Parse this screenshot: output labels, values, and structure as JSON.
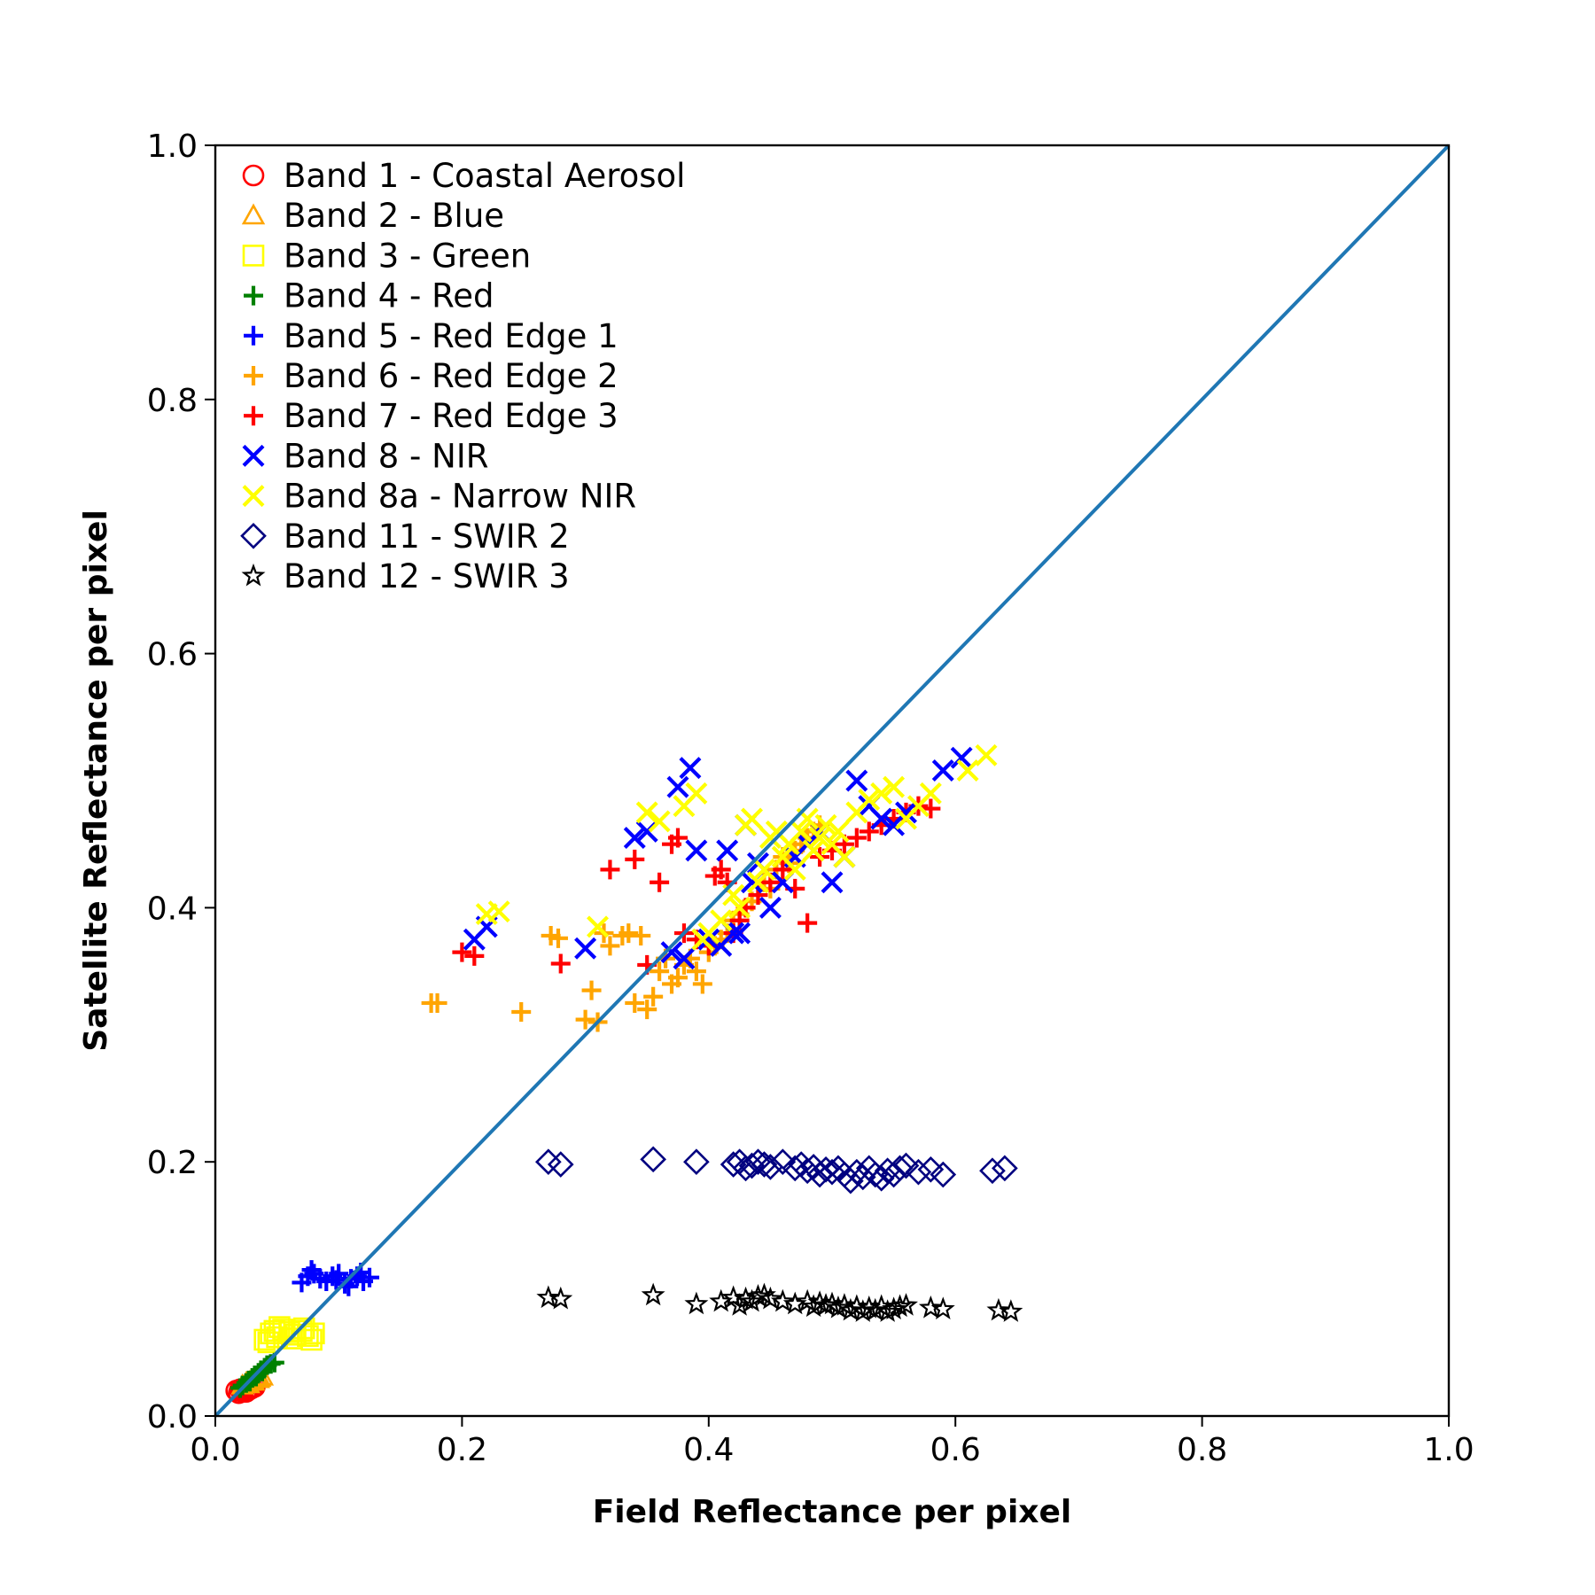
{
  "chart_data": {
    "type": "scatter",
    "title": "",
    "xlabel": "Field Reflectance per pixel",
    "ylabel": "Satellite Reflectance per pixel",
    "xlim": [
      0.0,
      1.0
    ],
    "ylim": [
      0.0,
      1.0
    ],
    "xticks": [
      "0.0",
      "0.2",
      "0.4",
      "0.6",
      "0.8",
      "1.0"
    ],
    "yticks": [
      "0.0",
      "0.2",
      "0.4",
      "0.6",
      "0.8",
      "1.0"
    ],
    "grid": false,
    "legend_position": "top-left",
    "reference_line": {
      "x": [
        0.0,
        1.0
      ],
      "y": [
        0.0,
        1.0
      ],
      "color": "#1f77b4"
    },
    "series": [
      {
        "name": "Band 1 - Coastal Aerosol",
        "marker": "circle",
        "color": "#ff0000",
        "x": [
          0.017,
          0.02,
          0.022,
          0.024,
          0.026,
          0.028,
          0.03,
          0.019,
          0.021,
          0.025,
          0.027,
          0.032,
          0.023,
          0.029
        ],
        "y": [
          0.02,
          0.021,
          0.019,
          0.022,
          0.02,
          0.021,
          0.022,
          0.018,
          0.02,
          0.019,
          0.021,
          0.023,
          0.02,
          0.022
        ]
      },
      {
        "name": "Band 2 - Blue",
        "marker": "triangle",
        "color": "#ffa500",
        "x": [
          0.022,
          0.025,
          0.028,
          0.03,
          0.033,
          0.035,
          0.038,
          0.027,
          0.031,
          0.036
        ],
        "y": [
          0.024,
          0.026,
          0.027,
          0.028,
          0.03,
          0.029,
          0.031,
          0.025,
          0.027,
          0.03
        ]
      },
      {
        "name": "Band 3 - Green",
        "marker": "square",
        "color": "#ffff00",
        "x": [
          0.04,
          0.045,
          0.05,
          0.055,
          0.06,
          0.065,
          0.07,
          0.075,
          0.08,
          0.043,
          0.052,
          0.062,
          0.072,
          0.078,
          0.048
        ],
        "y": [
          0.06,
          0.065,
          0.062,
          0.068,
          0.066,
          0.064,
          0.067,
          0.063,
          0.065,
          0.058,
          0.07,
          0.061,
          0.069,
          0.06,
          0.067
        ]
      },
      {
        "name": "Band 4 - Red",
        "marker": "plus",
        "color": "#008000",
        "x": [
          0.02,
          0.022,
          0.025,
          0.027,
          0.03,
          0.032,
          0.035,
          0.037,
          0.04,
          0.042,
          0.045,
          0.048,
          0.028,
          0.033,
          0.038
        ],
        "y": [
          0.022,
          0.024,
          0.026,
          0.028,
          0.03,
          0.032,
          0.034,
          0.036,
          0.038,
          0.04,
          0.041,
          0.042,
          0.027,
          0.031,
          0.035
        ]
      },
      {
        "name": "Band 5 - Red Edge 1",
        "marker": "plus",
        "color": "#0000ff",
        "x": [
          0.07,
          0.075,
          0.08,
          0.085,
          0.09,
          0.095,
          0.1,
          0.105,
          0.11,
          0.115,
          0.12,
          0.125,
          0.078,
          0.098,
          0.108,
          0.118
        ],
        "y": [
          0.105,
          0.11,
          0.112,
          0.108,
          0.106,
          0.11,
          0.112,
          0.104,
          0.108,
          0.11,
          0.106,
          0.109,
          0.115,
          0.107,
          0.102,
          0.113
        ]
      },
      {
        "name": "Band 6 - Red Edge 2",
        "marker": "plus",
        "color": "#ffa500",
        "x": [
          0.175,
          0.18,
          0.248,
          0.272,
          0.278,
          0.3,
          0.305,
          0.31,
          0.315,
          0.32,
          0.33,
          0.335,
          0.34,
          0.345,
          0.35,
          0.355,
          0.36,
          0.365,
          0.37,
          0.375,
          0.38,
          0.385,
          0.39,
          0.395,
          0.4,
          0.405,
          0.41,
          0.415,
          0.42,
          0.425,
          0.43,
          0.435,
          0.44,
          0.445,
          0.45,
          0.455,
          0.46,
          0.465,
          0.47,
          0.475,
          0.48,
          0.485,
          0.49
        ],
        "y": [
          0.325,
          0.325,
          0.318,
          0.378,
          0.376,
          0.312,
          0.335,
          0.31,
          0.38,
          0.37,
          0.378,
          0.38,
          0.325,
          0.378,
          0.32,
          0.33,
          0.35,
          0.36,
          0.34,
          0.345,
          0.355,
          0.36,
          0.35,
          0.34,
          0.365,
          0.37,
          0.375,
          0.38,
          0.39,
          0.395,
          0.4,
          0.405,
          0.41,
          0.42,
          0.415,
          0.43,
          0.44,
          0.435,
          0.445,
          0.45,
          0.455,
          0.46,
          0.465
        ]
      },
      {
        "name": "Band 7 - Red Edge 3",
        "marker": "plus",
        "color": "#ff0000",
        "x": [
          0.2,
          0.21,
          0.28,
          0.32,
          0.34,
          0.35,
          0.36,
          0.37,
          0.375,
          0.38,
          0.39,
          0.4,
          0.405,
          0.41,
          0.415,
          0.42,
          0.425,
          0.43,
          0.44,
          0.45,
          0.46,
          0.47,
          0.48,
          0.49,
          0.5,
          0.51,
          0.52,
          0.53,
          0.54,
          0.55,
          0.56,
          0.57,
          0.58
        ],
        "y": [
          0.365,
          0.362,
          0.356,
          0.43,
          0.438,
          0.355,
          0.42,
          0.45,
          0.455,
          0.38,
          0.375,
          0.37,
          0.425,
          0.43,
          0.42,
          0.38,
          0.39,
          0.4,
          0.41,
          0.42,
          0.43,
          0.415,
          0.388,
          0.44,
          0.445,
          0.45,
          0.455,
          0.46,
          0.465,
          0.47,
          0.475,
          0.48,
          0.478
        ]
      },
      {
        "name": "Band 8 - NIR",
        "marker": "x",
        "color": "#0000ff",
        "x": [
          0.21,
          0.22,
          0.3,
          0.34,
          0.35,
          0.37,
          0.375,
          0.38,
          0.385,
          0.39,
          0.4,
          0.41,
          0.415,
          0.42,
          0.425,
          0.43,
          0.435,
          0.44,
          0.45,
          0.46,
          0.47,
          0.48,
          0.49,
          0.5,
          0.51,
          0.52,
          0.53,
          0.54,
          0.55,
          0.56,
          0.59,
          0.605
        ],
        "y": [
          0.375,
          0.385,
          0.368,
          0.455,
          0.46,
          0.365,
          0.495,
          0.36,
          0.51,
          0.445,
          0.375,
          0.37,
          0.445,
          0.38,
          0.38,
          0.465,
          0.42,
          0.435,
          0.4,
          0.42,
          0.44,
          0.45,
          0.46,
          0.42,
          0.44,
          0.5,
          0.48,
          0.47,
          0.465,
          0.475,
          0.508,
          0.518
        ]
      },
      {
        "name": "Band 8a - Narrow NIR",
        "marker": "x",
        "color": "#ffff00",
        "x": [
          0.22,
          0.23,
          0.31,
          0.35,
          0.36,
          0.38,
          0.39,
          0.395,
          0.4,
          0.41,
          0.42,
          0.425,
          0.43,
          0.435,
          0.44,
          0.445,
          0.45,
          0.455,
          0.46,
          0.465,
          0.47,
          0.475,
          0.48,
          0.485,
          0.49,
          0.495,
          0.5,
          0.505,
          0.51,
          0.52,
          0.53,
          0.54,
          0.55,
          0.56,
          0.57,
          0.58,
          0.61,
          0.625
        ],
        "y": [
          0.395,
          0.397,
          0.385,
          0.475,
          0.468,
          0.48,
          0.49,
          0.375,
          0.38,
          0.39,
          0.41,
          0.4,
          0.465,
          0.47,
          0.42,
          0.43,
          0.455,
          0.46,
          0.44,
          0.45,
          0.43,
          0.46,
          0.47,
          0.445,
          0.455,
          0.465,
          0.45,
          0.46,
          0.44,
          0.475,
          0.485,
          0.49,
          0.495,
          0.47,
          0.48,
          0.49,
          0.508,
          0.52
        ]
      },
      {
        "name": "Band 11 - SWIR 2",
        "marker": "diamond",
        "color": "#000080",
        "x": [
          0.27,
          0.28,
          0.355,
          0.39,
          0.42,
          0.425,
          0.43,
          0.435,
          0.44,
          0.445,
          0.45,
          0.46,
          0.47,
          0.475,
          0.48,
          0.485,
          0.49,
          0.495,
          0.5,
          0.505,
          0.51,
          0.515,
          0.52,
          0.525,
          0.53,
          0.535,
          0.54,
          0.545,
          0.55,
          0.555,
          0.56,
          0.57,
          0.58,
          0.59,
          0.63,
          0.64
        ],
        "y": [
          0.2,
          0.198,
          0.202,
          0.2,
          0.198,
          0.2,
          0.195,
          0.197,
          0.2,
          0.198,
          0.196,
          0.2,
          0.195,
          0.198,
          0.193,
          0.196,
          0.19,
          0.194,
          0.192,
          0.195,
          0.19,
          0.185,
          0.192,
          0.188,
          0.195,
          0.19,
          0.187,
          0.193,
          0.19,
          0.195,
          0.197,
          0.192,
          0.194,
          0.19,
          0.193,
          0.195
        ]
      },
      {
        "name": "Band 12 - SWIR 3",
        "marker": "star",
        "color": "#000000",
        "x": [
          0.27,
          0.28,
          0.355,
          0.39,
          0.41,
          0.42,
          0.425,
          0.43,
          0.435,
          0.44,
          0.445,
          0.45,
          0.46,
          0.47,
          0.48,
          0.485,
          0.49,
          0.495,
          0.5,
          0.505,
          0.51,
          0.515,
          0.52,
          0.525,
          0.53,
          0.535,
          0.54,
          0.545,
          0.55,
          0.555,
          0.56,
          0.58,
          0.59,
          0.635,
          0.645
        ],
        "y": [
          0.093,
          0.092,
          0.095,
          0.088,
          0.09,
          0.093,
          0.087,
          0.092,
          0.09,
          0.094,
          0.095,
          0.092,
          0.09,
          0.088,
          0.09,
          0.086,
          0.089,
          0.087,
          0.088,
          0.085,
          0.087,
          0.083,
          0.086,
          0.082,
          0.085,
          0.083,
          0.086,
          0.082,
          0.084,
          0.086,
          0.087,
          0.085,
          0.084,
          0.083,
          0.082
        ]
      }
    ]
  }
}
